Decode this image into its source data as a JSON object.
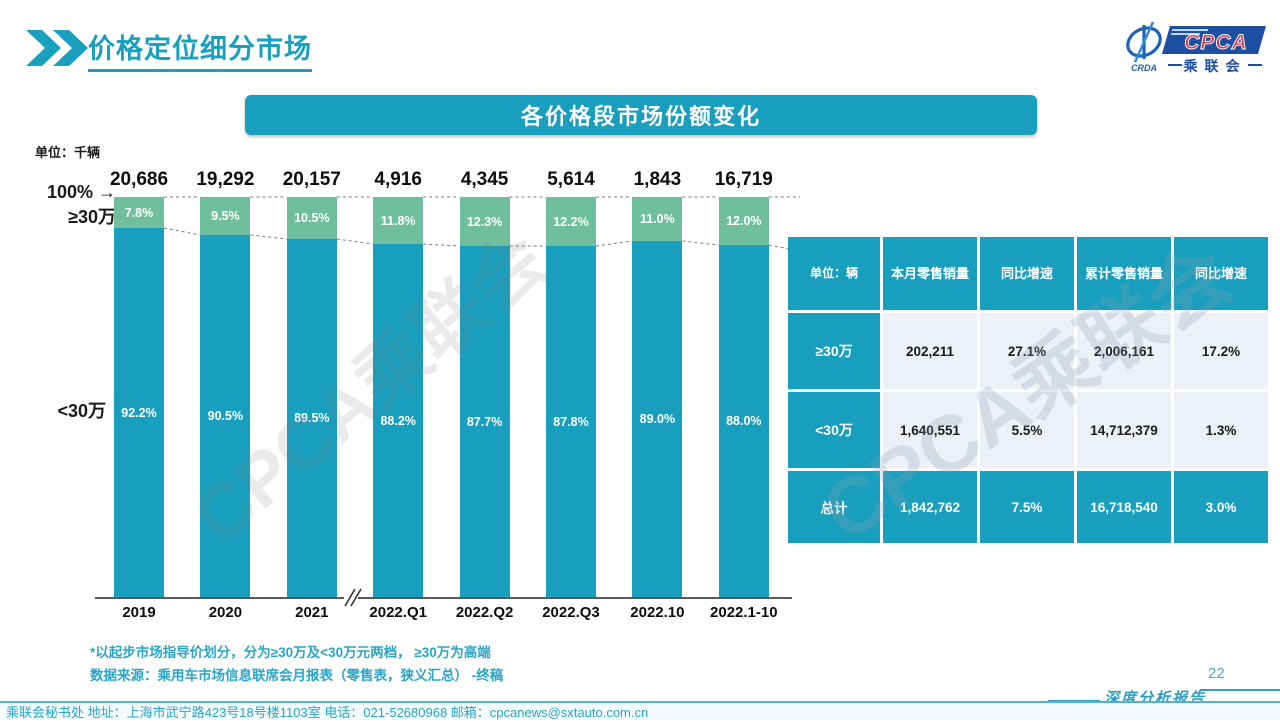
{
  "page": {
    "title": "价格定位细分市场",
    "page_number": "22",
    "report_label": "深度分析报告",
    "watermark": "CPCA乘联会",
    "footer": "乘联会秘书处   地址：上海市武宁路423号18号楼1103室 电话：021-52680968   邮箱：cpcanews@sxtauto.com.cn"
  },
  "logo": {
    "cpca": "CPCA",
    "crda": "CRDA",
    "cn": "乘联会"
  },
  "banner": {
    "title": "各价格段市场份额变化"
  },
  "icons": {
    "arrow_right": "→"
  },
  "chart": {
    "unit_label": "单位：千辆",
    "pct100_label": "100%",
    "ge30_label": "≥30万",
    "lt30_label": "<30万"
  },
  "chart_data": {
    "type": "bar",
    "stacked": true,
    "title": "各价格段市场份额变化",
    "unit": "单位：千辆 (totals above bars are thousand vehicles)",
    "categories": [
      "2019",
      "2020",
      "2021",
      "2022.Q1",
      "2022.Q2",
      "2022.Q3",
      "2022.10",
      "2022.1-10"
    ],
    "totals_label": [
      "20,686",
      "19,292",
      "20,157",
      "4,916",
      "4,345",
      "5,614",
      "1,843",
      "16,719"
    ],
    "totals": [
      20686,
      19292,
      20157,
      4916,
      4345,
      5614,
      1843,
      16719
    ],
    "series": [
      {
        "name": "≥30万",
        "color": "#6FBE9F",
        "values": [
          7.8,
          9.5,
          10.5,
          11.8,
          12.3,
          12.2,
          11.0,
          12.0
        ]
      },
      {
        "name": "<30万",
        "color": "#199FBE",
        "values": [
          92.2,
          90.5,
          89.5,
          88.2,
          87.7,
          87.8,
          89.0,
          88.0
        ]
      }
    ],
    "value_suffix": "%",
    "ylim": [
      0,
      100
    ],
    "axis_break_after": "2021",
    "legend_position": "left-of-bars",
    "grid": false
  },
  "table": {
    "headers": [
      "单位：辆",
      "本月零售销量",
      "同比增速",
      "累计零售销量",
      "同比增速"
    ],
    "rows": [
      {
        "label": "≥30万",
        "values": [
          "202,211",
          "27.1%",
          "2,006,161",
          "17.2%"
        ],
        "highlight": false
      },
      {
        "label": "<30万",
        "values": [
          "1,640,551",
          "5.5%",
          "14,712,379",
          "1.3%"
        ],
        "highlight": false
      },
      {
        "label": "总计",
        "values": [
          "1,842,762",
          "7.5%",
          "16,718,540",
          "3.0%"
        ],
        "highlight": true
      }
    ]
  },
  "notes": {
    "line1": "*以起步市场指导价划分，分为≥30万及<30万元两档， ≥30万为高端",
    "line2": "数据来源：乘用车市场信息联席会月报表（零售表，狭义汇总） -终稿"
  },
  "colors": {
    "teal": "#199FBE",
    "green": "#6FBE9F",
    "light_cell": "#EDF1F7",
    "note_teal": "#29A5C7"
  }
}
